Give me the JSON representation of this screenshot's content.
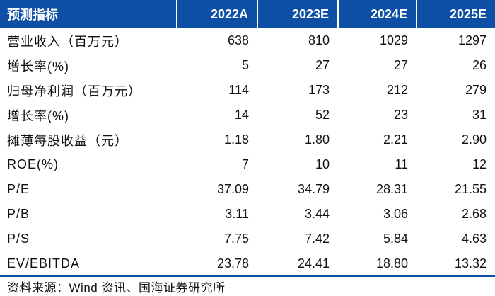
{
  "table": {
    "headers": [
      "预测指标",
      "2022A",
      "2023E",
      "2024E",
      "2025E"
    ],
    "rows": [
      {
        "label": "营业收入（百万元）",
        "values": [
          "638",
          "810",
          "1029",
          "1297"
        ]
      },
      {
        "label": "增长率(%)",
        "values": [
          "5",
          "27",
          "27",
          "26"
        ]
      },
      {
        "label": "归母净利润（百万元）",
        "values": [
          "114",
          "173",
          "212",
          "279"
        ]
      },
      {
        "label": "增长率(%)",
        "values": [
          "14",
          "52",
          "23",
          "31"
        ]
      },
      {
        "label": "摊薄每股收益（元）",
        "values": [
          "1.18",
          "1.80",
          "2.21",
          "2.90"
        ]
      },
      {
        "label": "ROE(%)",
        "values": [
          "7",
          "10",
          "11",
          "12"
        ]
      },
      {
        "label": "P/E",
        "values": [
          "37.09",
          "34.79",
          "28.31",
          "21.55"
        ]
      },
      {
        "label": "P/B",
        "values": [
          "3.11",
          "3.44",
          "3.06",
          "2.68"
        ]
      },
      {
        "label": "P/S",
        "values": [
          "7.75",
          "7.42",
          "5.84",
          "4.63"
        ]
      },
      {
        "label": "EV/EBITDA",
        "values": [
          "23.78",
          "24.41",
          "18.80",
          "13.32"
        ]
      }
    ]
  },
  "source": "资料来源：Wind 资讯、国海证券研究所",
  "colors": {
    "header_bg": "#0d4fa4",
    "header_text": "#ffffff"
  }
}
